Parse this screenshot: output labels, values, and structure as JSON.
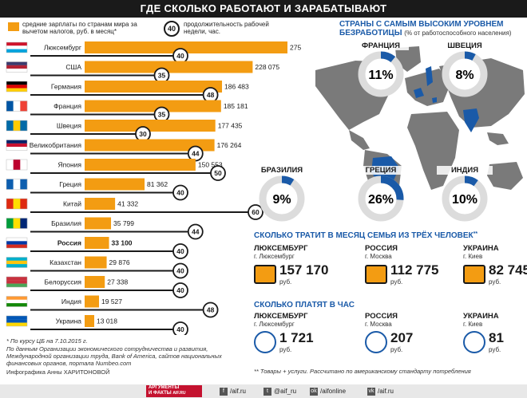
{
  "title": "ГДЕ СКОЛЬКО РАБОТАЮТ И ЗАРАБАТЫВАЮТ",
  "legend": {
    "salary": "средние зарплаты по странам мира за вычетом налогов, руб. в месяц*",
    "hours_badge": "40",
    "hours": "продолжительность рабочей недели, час."
  },
  "chart_data": {
    "type": "bar",
    "categories": [
      "Люксембург",
      "США",
      "Германия",
      "Франция",
      "Швеция",
      "Великобритания",
      "Япония",
      "Греция",
      "Китай",
      "Бразилия",
      "Россия",
      "Казахстан",
      "Белоруссия",
      "Индия",
      "Украина"
    ],
    "series": [
      {
        "values": [
          275330,
          228075,
          186483,
          185181,
          177435,
          176264,
          150553,
          81362,
          41332,
          35799,
          33100,
          29876,
          27338,
          19527,
          13018
        ]
      },
      {
        "values": [
          40,
          35,
          48,
          35,
          30,
          44,
          50,
          40,
          60,
          44,
          40,
          40,
          40,
          48,
          40
        ]
      }
    ],
    "value_labels": [
      "275 330",
      "228 075",
      "186 483",
      "185 181",
      "177 435",
      "176 264",
      "150 553",
      "81 362",
      "41 332",
      "35 799",
      "33 100",
      "29 876",
      "27 338",
      "19 527",
      "13 018"
    ],
    "highlight": "Россия",
    "bar_color": "#f39c12"
  },
  "unemployment": {
    "title": "СТРАНЫ С САМЫМ ВЫСОКИМ УРОВНЕМ БЕЗРАБОТИЦЫ",
    "subtitle": "(% от работоспособного населения)",
    "items": [
      {
        "country": "ФРАНЦИЯ",
        "value": "11%",
        "percent": 11
      },
      {
        "country": "ШВЕЦИЯ",
        "value": "8%",
        "percent": 8
      },
      {
        "country": "БРАЗИЛИЯ",
        "value": "9%",
        "percent": 9
      },
      {
        "country": "ГРЕЦИЯ",
        "value": "26%",
        "percent": 26
      },
      {
        "country": "ИНДИЯ",
        "value": "10%",
        "percent": 10
      }
    ]
  },
  "spending": {
    "title": "СКОЛЬКО ТРАТИТ В МЕСЯЦ СЕМЬЯ ИЗ ТРЁХ ЧЕЛОВЕК",
    "title_mark": "**",
    "items": [
      {
        "country": "ЛЮКСЕМБУРГ",
        "city": "г. Люксембург",
        "value": "157 170",
        "unit": "руб."
      },
      {
        "country": "РОССИЯ",
        "city": "г. Москва",
        "value": "112 775",
        "unit": "руб."
      },
      {
        "country": "УКРАИНА",
        "city": "г. Киев",
        "value": "82 745",
        "unit": "руб."
      }
    ]
  },
  "hourly": {
    "title": "СКОЛЬКО ПЛАТЯТ В ЧАС",
    "items": [
      {
        "country": "ЛЮКСЕМБУРГ",
        "city": "г. Люксембург",
        "value": "1 721",
        "unit": "руб."
      },
      {
        "country": "РОССИЯ",
        "city": "г. Москва",
        "value": "207",
        "unit": "руб."
      },
      {
        "country": "УКРАИНА",
        "city": "г. Киев",
        "value": "81",
        "unit": "руб."
      }
    ]
  },
  "notes": {
    "rate": "* По курсу ЦБ на 7.10.2015 г.",
    "sources": "По данным Организации экономического сотрудничества и развития, Международной организации труда, Bank of America, сайтов национальных финансовых органов, портала Numbeo.com",
    "author": "Инфографика Анны ХАРИТОНОВОЙ",
    "goods": "** Товары + услуги. Рассчитано по американскому стандарту потребления"
  },
  "footer": {
    "logo_top": "АРГУМЕНТЫ",
    "logo_bottom": "И ФАКТЫ",
    "logo_site": "AIF.RU",
    "social": [
      "/aif.ru",
      "@aif_ru",
      "/aifonline",
      "/aif.ru"
    ],
    "social_icons": [
      "f",
      "t",
      "ok",
      "vk"
    ]
  },
  "colors": {
    "orange": "#f39c12",
    "blue": "#1a5aa8",
    "map": "#7a7a7a",
    "highlight_country": "#1a5aa8"
  }
}
